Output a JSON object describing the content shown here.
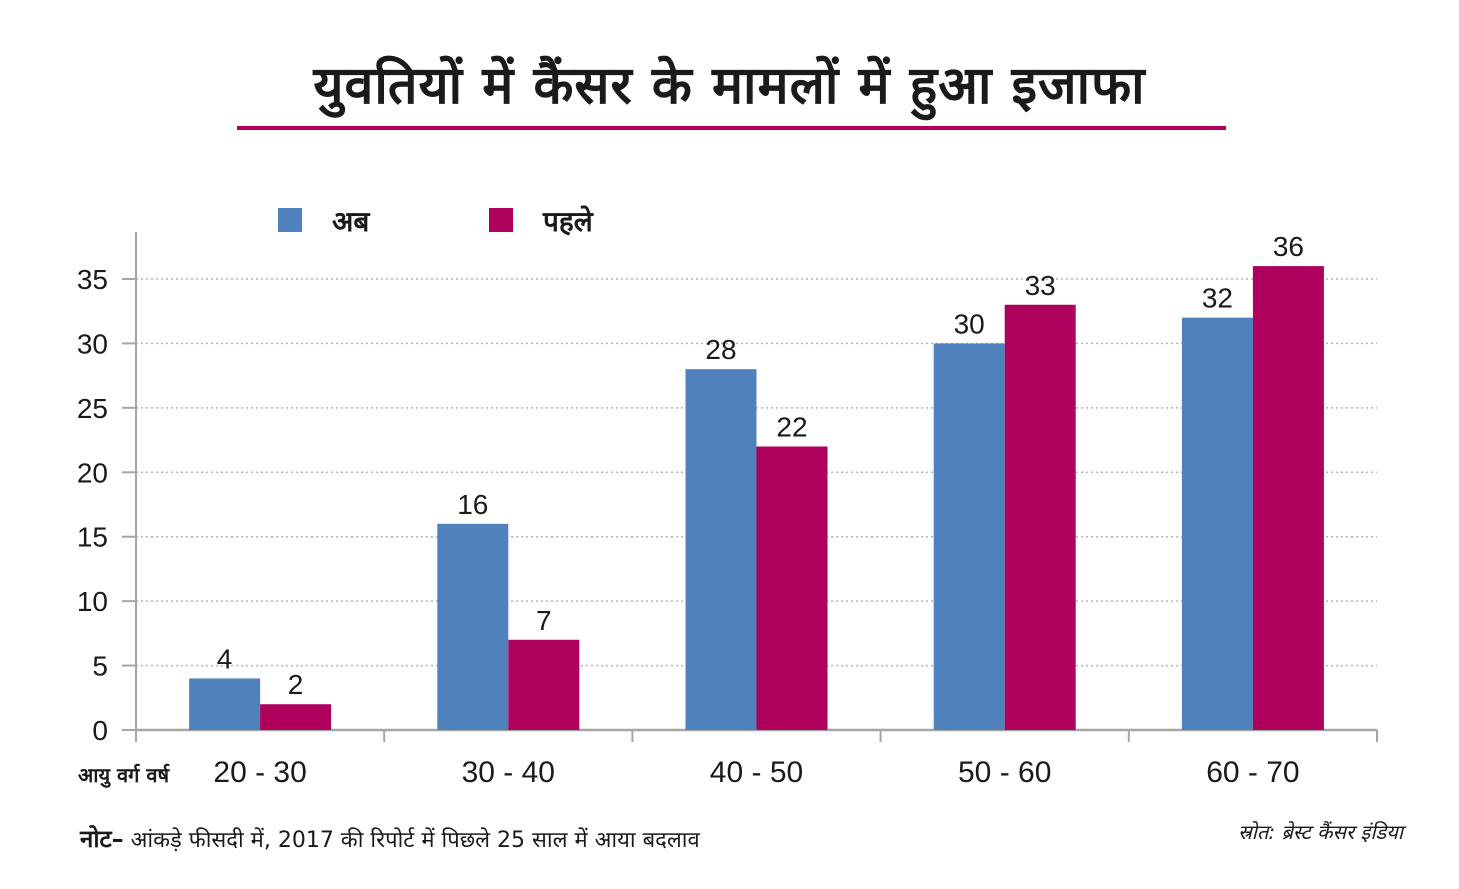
{
  "title": "युवतियों में कैंसर के मामलों में हुआ इजाफा",
  "note": {
    "label": "नोट",
    "dash": "–",
    "text": " आंकड़े फीसदी में, 2017 की रिपोर्ट में पिछले 25 साल में आया बदलाव"
  },
  "source": "स्रोत: ब्रेस्ट कैंसर इंडिया",
  "chart_data": {
    "type": "bar",
    "title": "युवतियों में कैंसर के मामलों में हुआ इजाफा",
    "xlabel": "आयु वर्ग वर्ष",
    "ylabel": "",
    "categories": [
      "20 - 30",
      "30 - 40",
      "40 - 50",
      "50 - 60",
      "60 - 70"
    ],
    "series": [
      {
        "name": "अब",
        "color": "#4f81bd",
        "values": [
          4,
          16,
          28,
          30,
          32
        ]
      },
      {
        "name": "पहले",
        "color": "#b0005d",
        "values": [
          2,
          7,
          22,
          33,
          36
        ]
      }
    ],
    "ylim": [
      0,
      38
    ],
    "yticks": [
      0,
      5,
      10,
      15,
      20,
      25,
      30,
      35
    ],
    "grid": true,
    "legend": "top-left",
    "data_labels": true
  }
}
